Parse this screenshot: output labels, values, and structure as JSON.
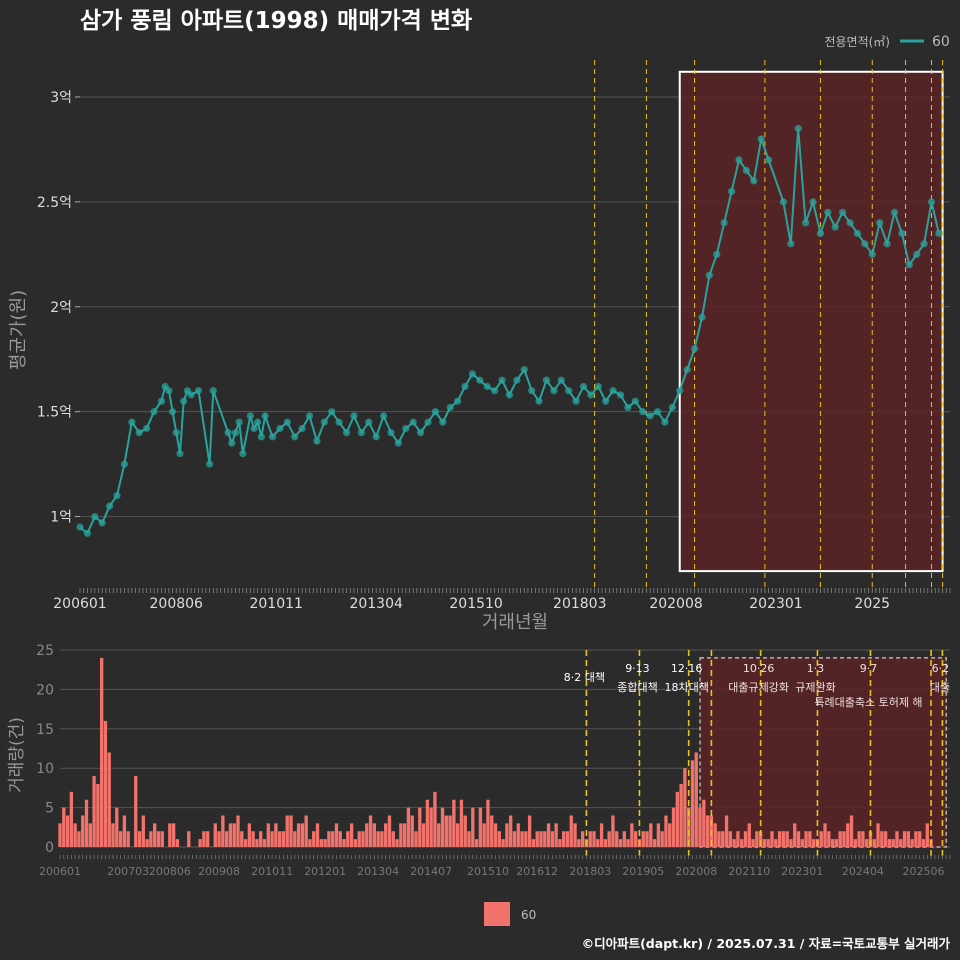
{
  "colors": {
    "background": "#2b2b2b",
    "grid": "#555555",
    "price_series": "#2aa39c",
    "volume_series": "#f2736b",
    "policy_line": "#e8c416",
    "highlight_fill": "#5a2326",
    "highlight_border_top": "#ffffff",
    "highlight_border_bottom": "#cfcfcf"
  },
  "chart_data": [
    {
      "type": "line",
      "title": "삼가 풍림 아파트(1998) 매매가격 변화",
      "xlabel": "거래년월",
      "ylabel": "평균가(원)",
      "legend_title": "전용면적(㎡)",
      "legend_entries": [
        "60"
      ],
      "legend_position": "top-right",
      "ylim": [
        0.65,
        3.2
      ],
      "y_ticks": [
        1,
        1.5,
        2,
        2.5,
        3
      ],
      "y_tick_labels": [
        "1억",
        "1.5억",
        "2억",
        "2.5억",
        "3억"
      ],
      "x_ticks": [
        0,
        26,
        53,
        80,
        107,
        135,
        161,
        188,
        214
      ],
      "x_tick_labels": [
        "200601",
        "200806",
        "201011",
        "201304",
        "201510",
        "201803",
        "202008",
        "202301",
        "2025"
      ],
      "x_month_range": [
        0,
        235
      ],
      "policy_month_indices": [
        139,
        153,
        166,
        185,
        200,
        214,
        223,
        230,
        233
      ],
      "highlight_range": [
        162,
        233
      ],
      "highlight_ylim": [
        0.74,
        3.12
      ],
      "series": [
        {
          "name": "60",
          "note": "monthly mean price in 억원 (month index from 2006-01)",
          "points": [
            [
              0,
              0.95
            ],
            [
              2,
              0.92
            ],
            [
              4,
              1.0
            ],
            [
              6,
              0.97
            ],
            [
              8,
              1.05
            ],
            [
              10,
              1.1
            ],
            [
              12,
              1.25
            ],
            [
              14,
              1.45
            ],
            [
              16,
              1.4
            ],
            [
              18,
              1.42
            ],
            [
              20,
              1.5
            ],
            [
              22,
              1.55
            ],
            [
              23,
              1.62
            ],
            [
              24,
              1.6
            ],
            [
              25,
              1.5
            ],
            [
              26,
              1.4
            ],
            [
              27,
              1.3
            ],
            [
              28,
              1.55
            ],
            [
              29,
              1.6
            ],
            [
              30,
              1.58
            ],
            [
              32,
              1.6
            ],
            [
              35,
              1.25
            ],
            [
              36,
              1.6
            ],
            [
              40,
              1.4
            ],
            [
              41,
              1.35
            ],
            [
              42,
              1.4
            ],
            [
              43,
              1.45
            ],
            [
              44,
              1.3
            ],
            [
              46,
              1.48
            ],
            [
              47,
              1.42
            ],
            [
              48,
              1.45
            ],
            [
              49,
              1.38
            ],
            [
              50,
              1.48
            ],
            [
              52,
              1.38
            ],
            [
              54,
              1.42
            ],
            [
              56,
              1.45
            ],
            [
              58,
              1.38
            ],
            [
              60,
              1.42
            ],
            [
              62,
              1.48
            ],
            [
              64,
              1.36
            ],
            [
              66,
              1.45
            ],
            [
              68,
              1.5
            ],
            [
              70,
              1.45
            ],
            [
              72,
              1.4
            ],
            [
              74,
              1.48
            ],
            [
              76,
              1.4
            ],
            [
              78,
              1.45
            ],
            [
              80,
              1.38
            ],
            [
              82,
              1.48
            ],
            [
              84,
              1.4
            ],
            [
              86,
              1.35
            ],
            [
              88,
              1.42
            ],
            [
              90,
              1.45
            ],
            [
              92,
              1.4
            ],
            [
              94,
              1.45
            ],
            [
              96,
              1.5
            ],
            [
              98,
              1.45
            ],
            [
              100,
              1.52
            ],
            [
              102,
              1.55
            ],
            [
              104,
              1.62
            ],
            [
              106,
              1.68
            ],
            [
              108,
              1.65
            ],
            [
              110,
              1.62
            ],
            [
              112,
              1.6
            ],
            [
              114,
              1.65
            ],
            [
              116,
              1.58
            ],
            [
              118,
              1.65
            ],
            [
              120,
              1.7
            ],
            [
              122,
              1.6
            ],
            [
              124,
              1.55
            ],
            [
              126,
              1.65
            ],
            [
              128,
              1.6
            ],
            [
              130,
              1.65
            ],
            [
              132,
              1.6
            ],
            [
              134,
              1.55
            ],
            [
              136,
              1.62
            ],
            [
              138,
              1.58
            ],
            [
              140,
              1.62
            ],
            [
              142,
              1.55
            ],
            [
              144,
              1.6
            ],
            [
              146,
              1.58
            ],
            [
              148,
              1.52
            ],
            [
              150,
              1.55
            ],
            [
              152,
              1.5
            ],
            [
              154,
              1.48
            ],
            [
              156,
              1.5
            ],
            [
              158,
              1.45
            ],
            [
              160,
              1.52
            ],
            [
              162,
              1.6
            ],
            [
              164,
              1.7
            ],
            [
              166,
              1.8
            ],
            [
              168,
              1.95
            ],
            [
              170,
              2.15
            ],
            [
              172,
              2.25
            ],
            [
              174,
              2.4
            ],
            [
              176,
              2.55
            ],
            [
              178,
              2.7
            ],
            [
              180,
              2.65
            ],
            [
              182,
              2.6
            ],
            [
              184,
              2.8
            ],
            [
              186,
              2.7
            ],
            [
              190,
              2.5
            ],
            [
              192,
              2.3
            ],
            [
              194,
              2.85
            ],
            [
              196,
              2.4
            ],
            [
              198,
              2.5
            ],
            [
              200,
              2.35
            ],
            [
              202,
              2.45
            ],
            [
              204,
              2.38
            ],
            [
              206,
              2.45
            ],
            [
              208,
              2.4
            ],
            [
              210,
              2.35
            ],
            [
              212,
              2.3
            ],
            [
              214,
              2.25
            ],
            [
              216,
              2.4
            ],
            [
              218,
              2.3
            ],
            [
              220,
              2.45
            ],
            [
              222,
              2.35
            ],
            [
              224,
              2.2
            ],
            [
              226,
              2.25
            ],
            [
              228,
              2.3
            ],
            [
              230,
              2.5
            ],
            [
              232,
              2.35
            ]
          ]
        }
      ]
    },
    {
      "type": "bar",
      "xlabel": "",
      "ylabel": "거래량(건)",
      "legend_entries": [
        "60"
      ],
      "legend_position": "bottom",
      "ylim": [
        0,
        25
      ],
      "y_ticks": [
        0,
        5,
        10,
        15,
        20,
        25
      ],
      "y_tick_labels": [
        "0",
        "5",
        "10",
        "15",
        "20",
        "25"
      ],
      "x_ticks": [
        0,
        18,
        29,
        42,
        56,
        70,
        84,
        98,
        113,
        126,
        140,
        154,
        168,
        182,
        196,
        212,
        228
      ],
      "x_tick_labels": [
        "200601",
        "200703",
        "200806",
        "200908",
        "201011",
        "201201",
        "201304",
        "201407",
        "201510",
        "201612",
        "201803",
        "201905",
        "202008",
        "202110",
        "202301",
        "202404",
        "202506"
      ],
      "x_month_range": [
        0,
        235
      ],
      "highlight_range": [
        169,
        234
      ],
      "policy_annotations": [
        {
          "month": 139,
          "date": "",
          "label": "8·2 대책"
        },
        {
          "month": 153,
          "date": "9·13",
          "label": "종합대책"
        },
        {
          "month": 166,
          "date": "12·16",
          "label": "18차대책"
        },
        {
          "month": 172,
          "date": "",
          "label": ""
        },
        {
          "month": 185,
          "date": "10·26",
          "label": "대출규제강화"
        },
        {
          "month": 200,
          "date": "1·3",
          "label": "규제완화"
        },
        {
          "month": 214,
          "date": "9·7",
          "label": "특례대출축소 토허제 해"
        },
        {
          "month": 230,
          "date": "",
          "label": ""
        },
        {
          "month": 233,
          "date": "6·2",
          "label": "대출"
        }
      ],
      "series": [
        {
          "name": "60",
          "note": "monthly transaction counts (건)",
          "values": [
            3,
            5,
            4,
            7,
            3,
            2,
            4,
            6,
            3,
            9,
            8,
            24,
            16,
            12,
            3,
            5,
            2,
            4,
            2,
            0,
            9,
            2,
            4,
            1,
            2,
            3,
            2,
            2,
            0,
            3,
            3,
            1,
            0,
            0,
            2,
            0,
            0,
            1,
            2,
            2,
            0,
            3,
            2,
            4,
            2,
            3,
            3,
            4,
            2,
            1,
            3,
            2,
            1,
            2,
            1,
            3,
            2,
            3,
            2,
            2,
            4,
            4,
            2,
            3,
            3,
            4,
            1,
            2,
            3,
            1,
            1,
            2,
            2,
            3,
            2,
            1,
            2,
            3,
            1,
            2,
            2,
            3,
            4,
            3,
            2,
            2,
            3,
            4,
            2,
            1,
            3,
            3,
            5,
            4,
            2,
            5,
            3,
            6,
            5,
            7,
            3,
            5,
            4,
            4,
            6,
            3,
            6,
            4,
            2,
            5,
            1,
            5,
            3,
            6,
            4,
            3,
            2,
            1,
            3,
            4,
            2,
            3,
            2,
            2,
            4,
            1,
            2,
            2,
            2,
            3,
            2,
            3,
            1,
            2,
            2,
            4,
            3,
            1,
            2,
            1,
            2,
            2,
            1,
            3,
            1,
            2,
            4,
            2,
            1,
            2,
            1,
            3,
            2,
            1,
            2,
            2,
            3,
            1,
            3,
            2,
            4,
            3,
            5,
            7,
            8,
            10,
            5,
            11,
            12,
            5,
            6,
            4,
            4,
            3,
            2,
            2,
            4,
            2,
            1,
            2,
            1,
            2,
            3,
            1,
            2,
            2,
            1,
            1,
            2,
            1,
            2,
            2,
            2,
            1,
            3,
            2,
            1,
            2,
            2,
            1,
            1,
            2,
            3,
            2,
            1,
            1,
            2,
            2,
            3,
            4,
            1,
            2,
            2,
            1,
            2,
            1,
            3,
            2,
            2,
            1,
            1,
            2,
            1,
            2,
            2,
            1,
            2,
            2,
            1,
            3,
            1
          ]
        }
      ]
    }
  ],
  "footer": {
    "credit": "©디아파트(dapt.kr) / 2025.07.31 / 자료=국토교통부 실거래가"
  }
}
